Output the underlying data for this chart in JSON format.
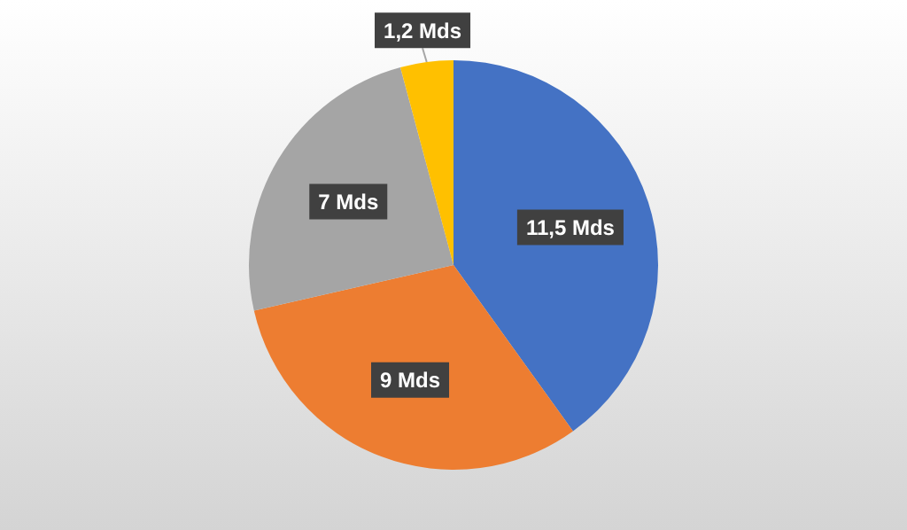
{
  "chart_data": {
    "type": "pie",
    "categories": [
      null,
      null,
      null,
      null
    ],
    "values": [
      11.5,
      9,
      7,
      1.2
    ],
    "colors": [
      "#4472c4",
      "#ed7d31",
      "#a5a5a5",
      "#ffc000"
    ],
    "value_labels": [
      "11,5 Mds",
      "9 Mds",
      "7 Mds",
      "1,2 Mds"
    ],
    "legend": false
  }
}
